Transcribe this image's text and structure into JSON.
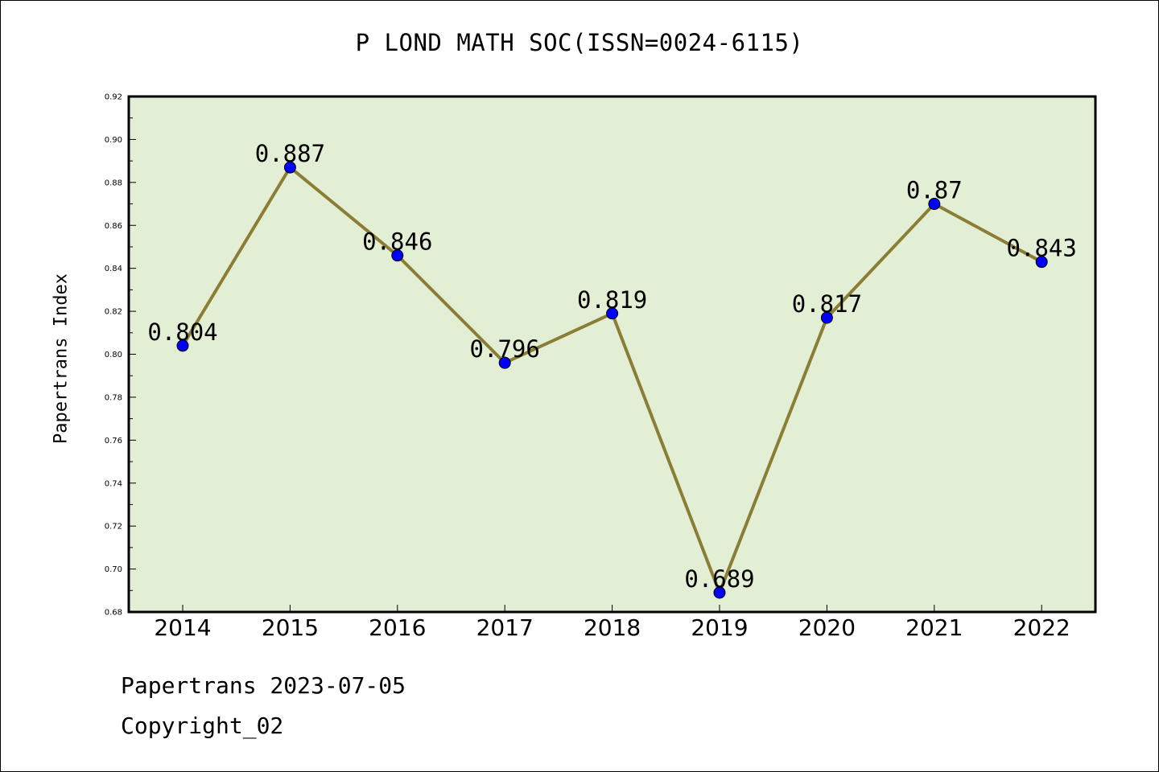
{
  "chart_data": {
    "type": "line",
    "title": "P LOND MATH SOC(ISSN=0024-6115)",
    "xlabel": "",
    "ylabel": "Papertrans Index",
    "categories": [
      "2014",
      "2015",
      "2016",
      "2017",
      "2018",
      "2019",
      "2020",
      "2021",
      "2022"
    ],
    "series": [
      {
        "values": [
          0.804,
          0.887,
          0.846,
          0.796,
          0.819,
          0.689,
          0.817,
          0.87,
          0.843
        ]
      }
    ],
    "data_labels": [
      "0.804",
      "0.887",
      "0.846",
      "0.796",
      "0.819",
      "0.689",
      "0.817",
      "0.87",
      "0.843"
    ],
    "ylim": [
      0.68,
      0.92
    ],
    "yticks": [
      "0.68",
      "0.70",
      "0.72",
      "0.74",
      "0.76",
      "0.78",
      "0.80",
      "0.82",
      "0.84",
      "0.86",
      "0.88",
      "0.90",
      "0.92"
    ],
    "grid": false,
    "legend": "none",
    "colors": {
      "plot_background": "#e2efd5",
      "line": "#8b7d35",
      "marker": "#0000ff"
    }
  },
  "footer": {
    "line1": "Papertrans 2023-07-05",
    "line2": "Copyright_02"
  }
}
